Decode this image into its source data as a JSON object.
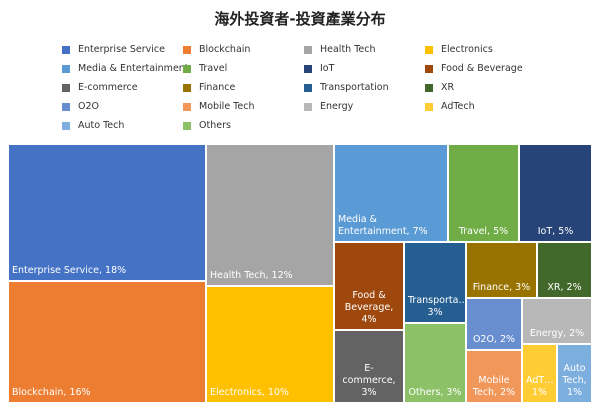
{
  "chart_data": {
    "type": "treemap",
    "title": "海外投資者-投資產業分布",
    "legend_placement": "top",
    "categories": [
      {
        "name": "Enterprise Service",
        "value": 18,
        "color": "#4472c4",
        "label": "Enterprise Service, 18%"
      },
      {
        "name": "Blockchain",
        "value": 16,
        "color": "#ed7d31",
        "label": "Blockchain, 16%"
      },
      {
        "name": "Health Tech",
        "value": 12,
        "color": "#a5a5a5",
        "label": "Health Tech, 12%"
      },
      {
        "name": "Electronics",
        "value": 10,
        "color": "#ffc000",
        "label": "Electronics, 10%"
      },
      {
        "name": "Media & Entertainment",
        "value": 7,
        "color": "#5b9bd5",
        "label": "Media & Entertainment, 7%"
      },
      {
        "name": "Travel",
        "value": 5,
        "color": "#70ad47",
        "label": "Travel, 5%"
      },
      {
        "name": "IoT",
        "value": 5,
        "color": "#264478",
        "label": "IoT, 5%"
      },
      {
        "name": "Food & Beverage",
        "value": 4,
        "color": "#9e480e",
        "label": "Food & Beverage, 4%"
      },
      {
        "name": "E-commerce",
        "value": 3,
        "color": "#636363",
        "label": "E-commerce, 3%"
      },
      {
        "name": "Finance",
        "value": 3,
        "color": "#997300",
        "label": "Finance, 3%"
      },
      {
        "name": "Transportation",
        "value": 3,
        "color": "#255e91",
        "label": "Transporta… 3%"
      },
      {
        "name": "XR",
        "value": 2,
        "color": "#43682b",
        "label": "XR, 2%"
      },
      {
        "name": "O2O",
        "value": 2,
        "color": "#698ed0",
        "label": "O2O, 2%"
      },
      {
        "name": "Mobile Tech",
        "value": 2,
        "color": "#f1975a",
        "label": "Mobile Tech, 2%"
      },
      {
        "name": "Energy",
        "value": 2,
        "color": "#b7b7b7",
        "label": "Energy, 2%"
      },
      {
        "name": "AdTech",
        "value": 1,
        "color": "#ffcd33",
        "label": "AdT… 1%"
      },
      {
        "name": "Auto Tech",
        "value": 1,
        "color": "#7cafdd",
        "label": "Auto Tech, 1%"
      },
      {
        "name": "Others",
        "value": 3,
        "color": "#8cc168",
        "label": "Others, 3%"
      }
    ],
    "legend_order": [
      "Enterprise Service",
      "Blockchain",
      "Health Tech",
      "Electronics",
      "Media & Entertainment",
      "Travel",
      "IoT",
      "Food & Beverage",
      "E-commerce",
      "Finance",
      "Transportation",
      "XR",
      "O2O",
      "Mobile Tech",
      "Energy",
      "AdTech",
      "Auto Tech",
      "Others"
    ]
  }
}
